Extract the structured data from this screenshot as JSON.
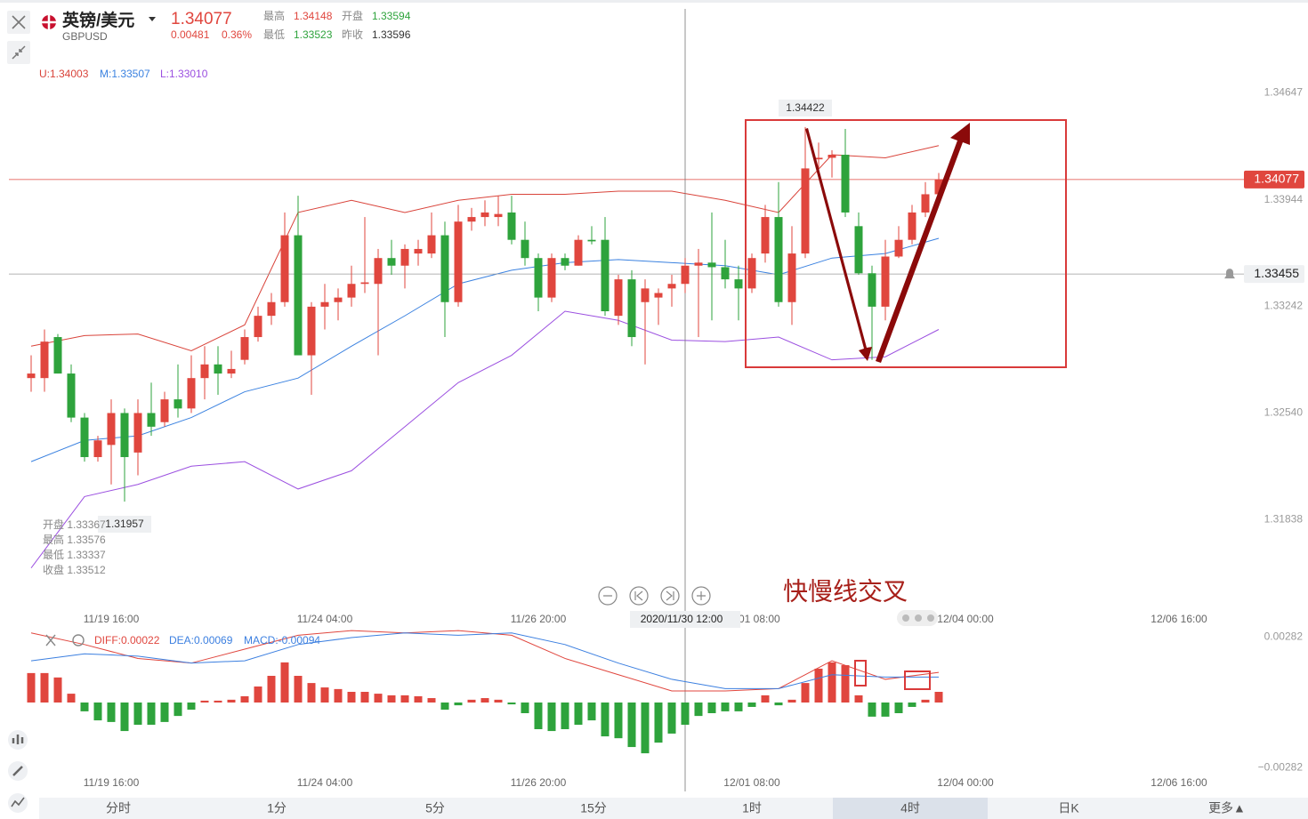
{
  "header": {
    "name": "英镑/美元",
    "symbol": "GBPUSD",
    "price": "1.34077",
    "change": "0.00481",
    "change_pct": "0.36%",
    "high_label": "最高",
    "high": "1.34148",
    "open_label": "开盘",
    "open": "1.33594",
    "low_label": "最低",
    "low": "1.33523",
    "prev_label": "昨收",
    "prev": "1.33596"
  },
  "band_legend": {
    "upper": "U:1.34003",
    "middle": "M:1.33507",
    "lower": "L:1.33010"
  },
  "tooltip": [
    "开盘 1.33367",
    "最高 1.33576",
    "最低 1.33337",
    "收盘 1.33512"
  ],
  "annotations": {
    "low_label": "1.31957",
    "high_label": "1.34422",
    "note": "快慢线交叉"
  },
  "tabs": [
    "分时",
    "1分",
    "5分",
    "15分",
    "1时",
    "4时",
    "日K",
    "更多▲"
  ],
  "selected_tab": 5,
  "chart_data": [
    {
      "type": "candlestick",
      "up_color": "#e0463e",
      "down_color": "#2ea33c",
      "xlim": [
        -2.333,
        90.667
      ],
      "ylim": [
        1.3122,
        1.352
      ],
      "xticks": [
        {
          "value": 6,
          "label": "11/19 16:00"
        },
        {
          "value": 22,
          "label": "11/24 04:00"
        },
        {
          "value": 38,
          "label": "11/26 20:00"
        },
        {
          "value": 54,
          "label": "12/01 08:00"
        },
        {
          "value": 70,
          "label": "12/04 00:00"
        },
        {
          "value": 86,
          "label": "12/06 16:00"
        }
      ],
      "yticks": [
        1.34647,
        1.33944,
        1.33242,
        {
          "value": 1.3254,
          "label": "1.32540"
        },
        1.31838
      ],
      "grid": false,
      "hlines": [
        1.34077,
        1.33455
      ],
      "hline_colors": [
        "#e0463e",
        "#9a9a9a"
      ],
      "vline": {
        "value": 49,
        "label": "2020/11/30 12:00"
      },
      "ohlc": [
        [
          1.3277,
          1.3292,
          1.3268,
          1.328
        ],
        [
          1.3277,
          1.3309,
          1.3268,
          1.3301
        ],
        [
          1.3304,
          1.3306,
          1.328,
          1.328
        ],
        [
          1.328,
          1.3286,
          1.3248,
          1.3251
        ],
        [
          1.3251,
          1.3254,
          1.3222,
          1.3225
        ],
        [
          1.3225,
          1.3239,
          1.3222,
          1.3236
        ],
        [
          1.3233,
          1.3263,
          1.3207,
          1.3254
        ],
        [
          1.3254,
          1.3257,
          1.31957,
          1.3225
        ],
        [
          1.3228,
          1.3263,
          1.3213,
          1.3254
        ],
        [
          1.3254,
          1.3274,
          1.3239,
          1.3245
        ],
        [
          1.3248,
          1.3268,
          1.3245,
          1.3263
        ],
        [
          1.3263,
          1.3286,
          1.3251,
          1.3257
        ],
        [
          1.3257,
          1.3292,
          1.3254,
          1.3277
        ],
        [
          1.3277,
          1.3298,
          1.3263,
          1.3286
        ],
        [
          1.3286,
          1.3298,
          1.3266,
          1.328
        ],
        [
          1.328,
          1.3295,
          1.3277,
          1.3283
        ],
        [
          1.3289,
          1.3309,
          1.3286,
          1.3304
        ],
        [
          1.3304,
          1.3324,
          1.3301,
          1.3318
        ],
        [
          1.3318,
          1.3333,
          1.3312,
          1.3327
        ],
        [
          1.3327,
          1.3386,
          1.3324,
          1.3371
        ],
        [
          1.3371,
          1.3397,
          1.3292,
          1.3292
        ],
        [
          1.3292,
          1.3327,
          1.3266,
          1.3324
        ],
        [
          1.3324,
          1.3339,
          1.3309,
          1.3327
        ],
        [
          1.3327,
          1.3336,
          1.3315,
          1.333
        ],
        [
          1.333,
          1.3351,
          1.3324,
          1.3339
        ],
        [
          1.3339,
          1.3383,
          1.3333,
          1.334
        ],
        [
          1.3339,
          1.3362,
          1.3292,
          1.3356
        ],
        [
          1.3356,
          1.3368,
          1.3345,
          1.3351
        ],
        [
          1.3351,
          1.3365,
          1.3336,
          1.3362
        ],
        [
          1.3359,
          1.3368,
          1.3351,
          1.3362
        ],
        [
          1.3359,
          1.3386,
          1.3356,
          1.3371
        ],
        [
          1.3371,
          1.338,
          1.3304,
          1.3327
        ],
        [
          1.3327,
          1.3391,
          1.3324,
          1.338
        ],
        [
          1.338,
          1.3389,
          1.3374,
          1.3383
        ],
        [
          1.3383,
          1.3394,
          1.3377,
          1.3386
        ],
        [
          1.3383,
          1.3397,
          1.3377,
          1.3385
        ],
        [
          1.3386,
          1.3397,
          1.3365,
          1.3368
        ],
        [
          1.3368,
          1.338,
          1.3351,
          1.3356
        ],
        [
          1.3356,
          1.3359,
          1.3321,
          1.333
        ],
        [
          1.333,
          1.3359,
          1.3327,
          1.3356
        ],
        [
          1.3356,
          1.3359,
          1.3348,
          1.3351
        ],
        [
          1.3351,
          1.3371,
          1.3351,
          1.3368
        ],
        [
          1.3368,
          1.3377,
          1.3365,
          1.3367
        ],
        [
          1.3368,
          1.3383,
          1.3318,
          1.3321
        ],
        [
          1.3318,
          1.3345,
          1.3312,
          1.3342
        ],
        [
          1.3342,
          1.3348,
          1.3298,
          1.3304
        ],
        [
          1.3327,
          1.3342,
          1.3286,
          1.3336
        ],
        [
          1.333,
          1.3336,
          1.3312,
          1.3333
        ],
        [
          1.3336,
          1.3345,
          1.3324,
          1.3339
        ],
        [
          1.3339,
          1.3356,
          1.3333,
          1.3351
        ],
        [
          1.3351,
          1.3362,
          1.3304,
          1.3353
        ],
        [
          1.3353,
          1.3386,
          1.3315,
          1.335
        ],
        [
          1.335,
          1.3368,
          1.3336,
          1.3342
        ],
        [
          1.3342,
          1.3351,
          1.3315,
          1.3336
        ],
        [
          1.3336,
          1.3359,
          1.3333,
          1.3356
        ],
        [
          1.3359,
          1.3391,
          1.3353,
          1.3383
        ],
        [
          1.3383,
          1.3406,
          1.3324,
          1.3327
        ],
        [
          1.3327,
          1.3377,
          1.3312,
          1.3359
        ],
        [
          1.3359,
          1.34422,
          1.3356,
          1.3415
        ],
        [
          1.3421,
          1.3432,
          1.3415,
          1.3422
        ],
        [
          1.3422,
          1.3427,
          1.3409,
          1.3424
        ],
        [
          1.3424,
          1.3441,
          1.3383,
          1.3386
        ],
        [
          1.3377,
          1.3386,
          1.3345,
          1.3346
        ],
        [
          1.3346,
          1.3351,
          1.3289,
          1.3324
        ],
        [
          1.3324,
          1.3368,
          1.3315,
          1.3357
        ],
        [
          1.3357,
          1.3377,
          1.3356,
          1.3368
        ],
        [
          1.3368,
          1.3391,
          1.3365,
          1.3386
        ],
        [
          1.3386,
          1.3406,
          1.3383,
          1.3398
        ],
        [
          1.3398,
          1.3412,
          1.3397,
          1.34077
        ]
      ],
      "bands": {
        "x": [
          0,
          4,
          8,
          12,
          16,
          20,
          24,
          28,
          32,
          36,
          40,
          44,
          48,
          52,
          56,
          60,
          64,
          68
        ],
        "series": [
          {
            "color": "#d9433a",
            "values": [
              1.3298,
              1.3305,
              1.3306,
              1.3295,
              1.3312,
              1.3386,
              1.3394,
              1.3386,
              1.3394,
              1.3398,
              1.3398,
              1.34,
              1.34,
              1.3394,
              1.3386,
              1.3424,
              1.3422,
              1.343
            ]
          },
          {
            "color": "#3b82e0",
            "values": [
              1.3222,
              1.3236,
              1.3239,
              1.3251,
              1.3268,
              1.3277,
              1.3298,
              1.3318,
              1.3339,
              1.3348,
              1.3353,
              1.3355,
              1.3353,
              1.3351,
              1.3345,
              1.3356,
              1.3359,
              1.3369
            ]
          },
          {
            "color": "#9b4fe0",
            "values": [
              1.3152,
              1.3199,
              1.3207,
              1.3219,
              1.3222,
              1.3204,
              1.3216,
              1.3245,
              1.3274,
              1.3292,
              1.3321,
              1.3315,
              1.3302,
              1.3301,
              1.3304,
              1.3289,
              1.3291,
              1.3309
            ]
          }
        ]
      }
    },
    {
      "type": "macd",
      "up_color": "#e0463e",
      "down_color": "#2ea33c",
      "xlim": [
        -2.333,
        90.667
      ],
      "ylim": [
        -0.00326,
        0.00326
      ],
      "xticks": [
        {
          "value": 6,
          "label": "11/19 16:00"
        },
        {
          "value": 22,
          "label": "11/24 04:00"
        },
        {
          "value": 38,
          "label": "11/26 20:00"
        },
        {
          "value": 54,
          "label": "12/01 08:00"
        },
        {
          "value": 70,
          "label": "12/04 00:00"
        },
        {
          "value": 86,
          "label": "12/06 16:00"
        }
      ],
      "yticks": [
        0.00282,
        {
          "value": -0.00282,
          "label": "−0.00282"
        }
      ],
      "legend": [
        {
          "label": "DIFF:0.00022",
          "color": "#e0463e"
        },
        {
          "label": "DEA:0.00069",
          "color": "#3b7fe0"
        },
        {
          "label": "MACD:-0.00094",
          "color": "#3b7fe0"
        }
      ],
      "histogram": [
        0.00127,
        0.00127,
        0.00108,
        0.00038,
        -0.00038,
        -0.00077,
        -0.00084,
        -0.00123,
        -0.00096,
        -0.00096,
        -0.00084,
        -0.00058,
        -0.00031,
        8e-05,
        8e-05,
        0.00012,
        0.00027,
        0.00069,
        0.00115,
        0.00173,
        0.00115,
        0.00084,
        0.00065,
        0.00058,
        0.00046,
        0.00046,
        0.00038,
        0.00031,
        0.00031,
        0.00027,
        0.00019,
        -0.00031,
        -0.00012,
        0.00012,
        0.00019,
        0.00012,
        -8e-05,
        -0.00046,
        -0.00115,
        -0.00123,
        -0.00115,
        -0.00096,
        -0.00077,
        -0.00146,
        -0.00154,
        -0.00192,
        -0.00219,
        -0.00173,
        -0.00134,
        -0.00096,
        -0.00058,
        -0.00046,
        -0.00038,
        -0.00038,
        -0.00019,
        0.00031,
        -0.00012,
        0.00012,
        0.00084,
        0.00146,
        0.00173,
        0.00161,
        0.00031,
        -0.00061,
        -0.00061,
        -0.00046,
        -0.00019,
        0.00012,
        0.00046
      ],
      "line_x": [
        0,
        4,
        8,
        12,
        16,
        20,
        24,
        28,
        32,
        36,
        40,
        44,
        48,
        52,
        56,
        60,
        64,
        68
      ],
      "lines": [
        {
          "color": "#e0463e",
          "values": [
            0.003,
            0.0025,
            0.0019,
            0.0017,
            0.0023,
            0.0029,
            0.0031,
            0.003,
            0.0031,
            0.0029,
            0.0019,
            0.0012,
            0.0005,
            0.0005,
            0.0006,
            0.0018,
            0.001,
            0.0013
          ]
        },
        {
          "color": "#3b7fe0",
          "values": [
            0.0018,
            0.0021,
            0.002,
            0.0017,
            0.0018,
            0.0025,
            0.0028,
            0.003,
            0.0029,
            0.003,
            0.0025,
            0.0017,
            0.001,
            0.0006,
            0.0006,
            0.0012,
            0.0011,
            0.0011
          ]
        }
      ]
    }
  ]
}
